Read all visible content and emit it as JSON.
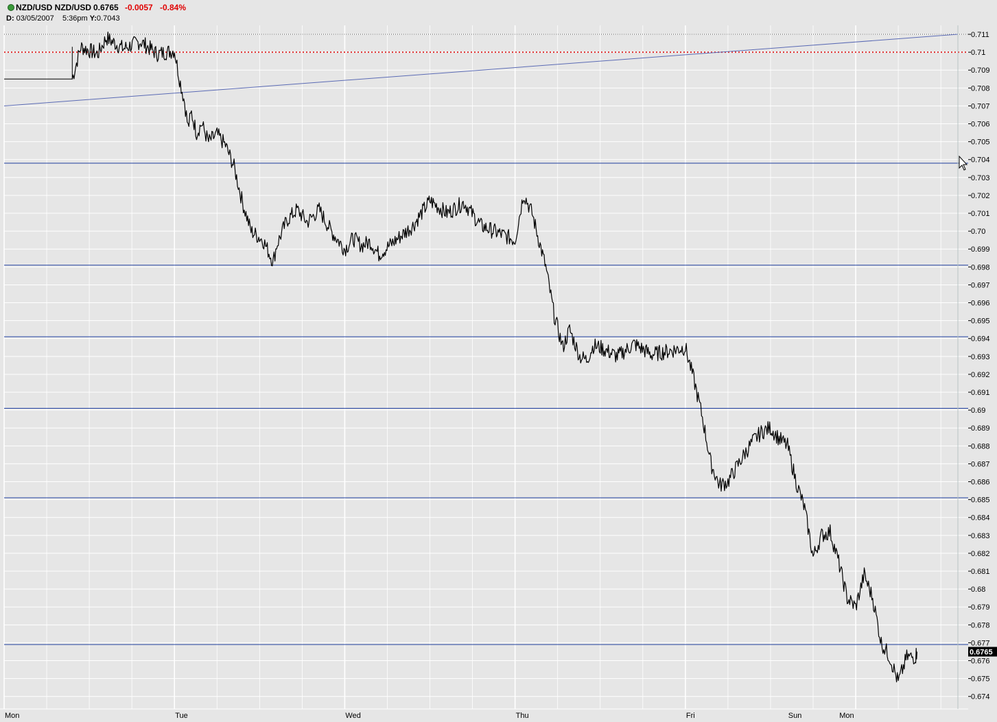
{
  "header": {
    "symbol": "NZD/USD NZD/USD",
    "last_price": "0.6765",
    "net_change": "-0.0057",
    "pct_change": "-0.84%",
    "date_label": "D:",
    "date_value": "03/05/2007",
    "time_value": "5:36pm",
    "y_label": "Y:",
    "y_value": "0.7043"
  },
  "colors": {
    "background": "#e6e6e6",
    "grid": "#ffffff",
    "price_line": "#000000",
    "hline": "#1f3f9f",
    "trendline": "#5a6ab4",
    "red_dotted": "#e03030",
    "negative": "#e00000",
    "status_dot": "#3a9a3a"
  },
  "icons": {
    "status": "green-dot-icon",
    "cursor": "mouse-pointer-icon"
  },
  "chart_data": {
    "type": "line",
    "title": "NZD/USD NZD/USD",
    "ylim": [
      0.6733,
      0.7115
    ],
    "y_ticks": [
      0.711,
      0.71,
      0.709,
      0.708,
      0.707,
      0.706,
      0.705,
      0.704,
      0.703,
      0.702,
      0.701,
      0.7,
      0.699,
      0.698,
      0.697,
      0.696,
      0.695,
      0.694,
      0.693,
      0.692,
      0.691,
      0.69,
      0.689,
      0.688,
      0.687,
      0.686,
      0.685,
      0.684,
      0.683,
      0.682,
      0.681,
      0.68,
      0.679,
      0.678,
      0.677,
      0.676,
      0.675,
      0.674
    ],
    "y_tick_labels": [
      "0.711",
      "0.71",
      "0.709",
      "0.708",
      "0.707",
      "0.706",
      "0.705",
      "0.704",
      "0.703",
      "0.702",
      "0.701",
      "0.70",
      "0.699",
      "0.698",
      "0.697",
      "0.696",
      "0.695",
      "0.694",
      "0.693",
      "0.692",
      "0.691",
      "0.69",
      "0.689",
      "0.688",
      "0.687",
      "0.686",
      "0.685",
      "0.684",
      "0.683",
      "0.682",
      "0.681",
      "0.68",
      "0.679",
      "0.678",
      "0.677",
      "0.676",
      "0.675",
      "0.674"
    ],
    "x_ticks": [
      "Mon",
      "Tue",
      "Wed",
      "Thu",
      "Fri",
      "Sun",
      "Mon"
    ],
    "x_tick_pos": [
      0,
      1,
      2,
      3,
      4,
      4.6,
      4.9
    ],
    "xlim": [
      0,
      5.6
    ],
    "series": [
      {
        "x": [
          0.0,
          0.4,
          0.45,
          0.55,
          0.6,
          0.7,
          0.8,
          0.9,
          1.0,
          1.03,
          1.06,
          1.08,
          1.1,
          1.13,
          1.16,
          1.2,
          1.25,
          1.3,
          1.35,
          1.4,
          1.45,
          1.52,
          1.58,
          1.6,
          1.66,
          1.72,
          1.78,
          1.85,
          1.92,
          2.0,
          2.05,
          2.1,
          2.15,
          2.2,
          2.3,
          2.4,
          2.5,
          2.6,
          2.7,
          2.8,
          2.9,
          3.0,
          3.05,
          3.1,
          3.18,
          3.23,
          3.28,
          3.32,
          3.38,
          3.42,
          3.46,
          3.5,
          3.6,
          3.7,
          3.8,
          3.9,
          4.0,
          4.05,
          4.1,
          4.15,
          4.2,
          4.25,
          4.3,
          4.35,
          4.4,
          4.45,
          4.5,
          4.55,
          4.6,
          4.65,
          4.7,
          4.75,
          4.8,
          4.85,
          4.9,
          4.95,
          5.0,
          5.05,
          5.1,
          5.15,
          5.2,
          5.25,
          5.3,
          5.35,
          5.36
        ],
        "y": [
          0.7085,
          0.7085,
          0.7103,
          0.7099,
          0.7108,
          0.7102,
          0.7106,
          0.7099,
          0.7101,
          0.7085,
          0.7072,
          0.7058,
          0.7066,
          0.7055,
          0.706,
          0.705,
          0.7054,
          0.7048,
          0.7036,
          0.7016,
          0.7,
          0.6995,
          0.6983,
          0.6992,
          0.7006,
          0.7012,
          0.7005,
          0.7012,
          0.7,
          0.699,
          0.6996,
          0.6992,
          0.6994,
          0.6987,
          0.6995,
          0.7003,
          0.7017,
          0.701,
          0.7016,
          0.7003,
          0.6999,
          0.6995,
          0.7021,
          0.701,
          0.698,
          0.6953,
          0.6935,
          0.6945,
          0.693,
          0.6928,
          0.6936,
          0.6935,
          0.693,
          0.6937,
          0.6931,
          0.6933,
          0.6935,
          0.6917,
          0.6896,
          0.687,
          0.6858,
          0.686,
          0.6868,
          0.6876,
          0.6883,
          0.6888,
          0.689,
          0.6884,
          0.688,
          0.686,
          0.6845,
          0.6818,
          0.683,
          0.6832,
          0.6815,
          0.6795,
          0.679,
          0.6808,
          0.6795,
          0.677,
          0.6762,
          0.6748,
          0.6762,
          0.6762,
          0.6765
        ]
      }
    ],
    "horizontal_lines": [
      0.7038,
      0.6981,
      0.6941,
      0.6901,
      0.6851,
      0.6769
    ],
    "red_dotted_line": 0.71,
    "top_dotted_line": 0.711,
    "trendline": {
      "x": [
        0,
        5.6
      ],
      "y": [
        0.707,
        0.711
      ]
    },
    "step_line": {
      "x": [
        0,
        0.4,
        0.4
      ],
      "y": [
        0.7085,
        0.7085,
        0.7103
      ]
    },
    "current_value_label": "0.6765",
    "grid": true
  }
}
